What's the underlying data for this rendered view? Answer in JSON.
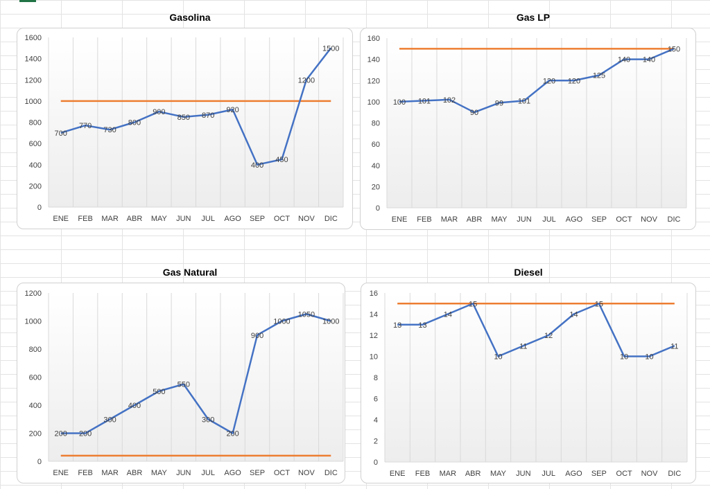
{
  "colors": {
    "line": "#4472C4",
    "target": "#ED7D31",
    "grid": "#D9D9D9",
    "text": "#404040",
    "sheet_grid": "#E3E3E3",
    "selection": "#217346"
  },
  "chart_data": [
    {
      "type": "line",
      "title": "Gasolina",
      "categories": [
        "ENE",
        "FEB",
        "MAR",
        "ABR",
        "MAY",
        "JUN",
        "JUL",
        "AGO",
        "SEP",
        "OCT",
        "NOV",
        "DIC"
      ],
      "series": [
        {
          "values": [
            700,
            770,
            730,
            800,
            900,
            850,
            870,
            920,
            400,
            450,
            1200,
            1500
          ]
        },
        {
          "values": [
            1000,
            1000,
            1000,
            1000,
            1000,
            1000,
            1000,
            1000,
            1000,
            1000,
            1000,
            1000
          ]
        }
      ],
      "ylim": [
        0,
        1600
      ],
      "yticks": [
        "0",
        "200",
        "400",
        "600",
        "800",
        "1000",
        "1200",
        "1400",
        "1600"
      ],
      "grid": "vertical"
    },
    {
      "type": "line",
      "title": "Gas LP",
      "categories": [
        "ENE",
        "FEB",
        "MAR",
        "ABR",
        "MAY",
        "JUN",
        "JUL",
        "AGO",
        "SEP",
        "OCT",
        "NOV",
        "DIC"
      ],
      "series": [
        {
          "values": [
            100,
            101,
            102,
            90,
            99,
            101,
            120,
            120,
            125,
            140,
            140,
            150
          ]
        },
        {
          "values": [
            150,
            150,
            150,
            150,
            150,
            150,
            150,
            150,
            150,
            150,
            150,
            150
          ]
        }
      ],
      "ylim": [
        0,
        160
      ],
      "yticks": [
        "0",
        "20",
        "40",
        "60",
        "80",
        "100",
        "120",
        "140",
        "160"
      ],
      "grid": "vertical"
    },
    {
      "type": "line",
      "title": "Gas Natural",
      "categories": [
        "ENE",
        "FEB",
        "MAR",
        "ABR",
        "MAY",
        "JUN",
        "JUL",
        "AGO",
        "SEP",
        "OCT",
        "NOV",
        "DIC"
      ],
      "series": [
        {
          "values": [
            200,
            200,
            300,
            400,
            500,
            550,
            300,
            200,
            900,
            1000,
            1050,
            1000
          ]
        },
        {
          "values": [
            40,
            40,
            40,
            40,
            40,
            40,
            40,
            40,
            40,
            40,
            40,
            40
          ]
        }
      ],
      "ylim": [
        0,
        1200
      ],
      "yticks": [
        "0",
        "200",
        "400",
        "600",
        "800",
        "1000",
        "1200"
      ],
      "grid": "vertical"
    },
    {
      "type": "line",
      "title": "Diesel",
      "categories": [
        "ENE",
        "FEB",
        "MAR",
        "ABR",
        "MAY",
        "JUN",
        "JUL",
        "AGO",
        "SEP",
        "OCT",
        "NOV",
        "DIC"
      ],
      "series": [
        {
          "values": [
            13,
            13,
            14,
            15,
            10,
            11,
            12,
            14,
            15,
            10,
            10,
            11
          ]
        },
        {
          "values": [
            15,
            15,
            15,
            15,
            15,
            15,
            15,
            15,
            15,
            15,
            15,
            15
          ]
        }
      ],
      "ylim": [
        0,
        16
      ],
      "yticks": [
        "0",
        "2",
        "4",
        "6",
        "8",
        "10",
        "12",
        "14",
        "16"
      ],
      "grid": "vertical"
    }
  ]
}
